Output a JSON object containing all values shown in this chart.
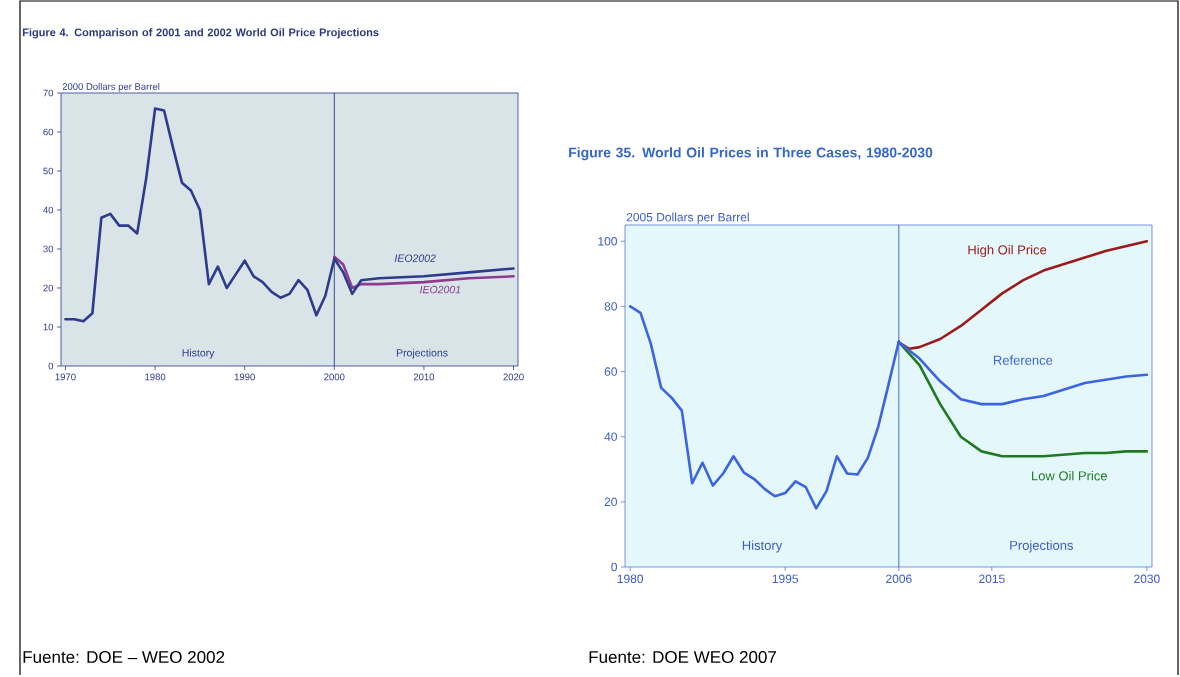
{
  "chart_data": [
    {
      "type": "line",
      "title": "Figure 4.  Comparison of 2001 and 2002 World Oil Price Projections",
      "ylabel": "2000 Dollars per Barrel",
      "xlim": [
        1969.5,
        2020.5
      ],
      "xticks": [
        1970,
        1980,
        1990,
        2000,
        2010,
        2020
      ],
      "ylim": [
        0,
        70
      ],
      "yticks": [
        0,
        10,
        20,
        30,
        40,
        50,
        60,
        70
      ],
      "marker": "none",
      "line_style": "solid",
      "ref_lines": [
        {
          "axis": "x",
          "value": 2000,
          "color": "#2e3a8c"
        }
      ],
      "annotations": [
        "History",
        "Projections",
        "Fuente: DOE – WEO 2002"
      ],
      "series": [
        {
          "color": "#2e3a8c",
          "x": [
            1970,
            1971,
            1972,
            1973,
            1974,
            1975,
            1976,
            1977,
            1978,
            1979,
            1980,
            1981,
            1982,
            1983,
            1984,
            1985,
            1986,
            1987,
            1988,
            1989,
            1990,
            1991,
            1992,
            1993,
            1994,
            1995,
            1996,
            1997,
            1998,
            1999,
            2000
          ],
          "values": [
            12,
            12,
            11.5,
            13.5,
            38,
            39,
            36,
            36,
            34,
            48,
            66,
            65.5,
            56,
            47,
            45,
            40,
            21,
            25.5,
            20,
            23.5,
            27,
            23,
            21.5,
            19,
            17.5,
            18.5,
            22,
            19.5,
            13,
            18,
            27.5
          ]
        },
        {
          "name": "IEO2001",
          "color": "#8e3a90",
          "x": [
            2000,
            2001,
            2002,
            2003,
            2005,
            2010,
            2015,
            2020
          ],
          "values": [
            28,
            26,
            20,
            21,
            21,
            21.5,
            22.5,
            23
          ]
        },
        {
          "name": "IEO2002",
          "color": "#2e3a8c",
          "x": [
            2000,
            2001,
            2002,
            2003,
            2005,
            2010,
            2015,
            2020
          ],
          "values": [
            27.5,
            24,
            18.5,
            22,
            22.5,
            23,
            24,
            25
          ]
        }
      ]
    },
    {
      "type": "line",
      "title": "Figure 35.  World Oil Prices in Three Cases, 1980-2030",
      "ylabel": "2005 Dollars per Barrel",
      "xlim": [
        1979.5,
        2030.5
      ],
      "xticks": [
        1980,
        1995,
        2006,
        2015,
        2030
      ],
      "ylim": [
        0,
        105
      ],
      "yticks": [
        0,
        20,
        40,
        60,
        80,
        100
      ],
      "marker": "none",
      "line_style": "solid",
      "ref_lines": [
        {
          "axis": "x",
          "value": 2006,
          "color": "#3a5ad0"
        }
      ],
      "annotations": [
        "History",
        "Projections",
        "Fuente: DOE WEO 2007"
      ],
      "series": [
        {
          "color": "#3b64e0",
          "x": [
            1980,
            1981,
            1982,
            1983,
            1984,
            1985,
            1986,
            1987,
            1988,
            1989,
            1990,
            1991,
            1992,
            1993,
            1994,
            1995,
            1996,
            1997,
            1998,
            1999,
            2000,
            2001,
            2002,
            2003,
            2004,
            2005,
            2006
          ],
          "values": [
            80,
            78,
            68.5,
            55,
            52,
            48,
            25.7,
            32,
            25,
            28.7,
            34,
            29,
            27,
            24,
            21.7,
            22.7,
            26.3,
            24.5,
            18,
            23.3,
            34,
            28.7,
            28.4,
            33.5,
            43,
            56,
            69.3
          ]
        },
        {
          "name": "High Oil Price",
          "color": "#9b1b1b",
          "x": [
            2006,
            2007,
            2008,
            2010,
            2012,
            2014,
            2016,
            2018,
            2020,
            2022,
            2024,
            2026,
            2028,
            2030
          ],
          "values": [
            69,
            67,
            67.5,
            70,
            74,
            79,
            84,
            88,
            91,
            93,
            95,
            97,
            98.5,
            100
          ]
        },
        {
          "name": "Low Oil Price",
          "color": "#1f7a1f",
          "x": [
            2006,
            2008,
            2010,
            2012,
            2014,
            2016,
            2018,
            2020,
            2022,
            2024,
            2026,
            2028,
            2030
          ],
          "values": [
            69,
            62,
            50,
            40,
            35.5,
            34,
            34,
            34,
            34.5,
            35,
            35,
            35.5,
            35.5
          ]
        },
        {
          "name": "Reference",
          "color": "#3b64e0",
          "x": [
            2006,
            2008,
            2010,
            2012,
            2014,
            2016,
            2018,
            2020,
            2022,
            2024,
            2026,
            2028,
            2030
          ],
          "values": [
            69,
            64,
            57,
            51.5,
            50,
            50,
            51.5,
            52.5,
            54.5,
            56.5,
            57.5,
            58.5,
            59
          ]
        }
      ]
    }
  ]
}
